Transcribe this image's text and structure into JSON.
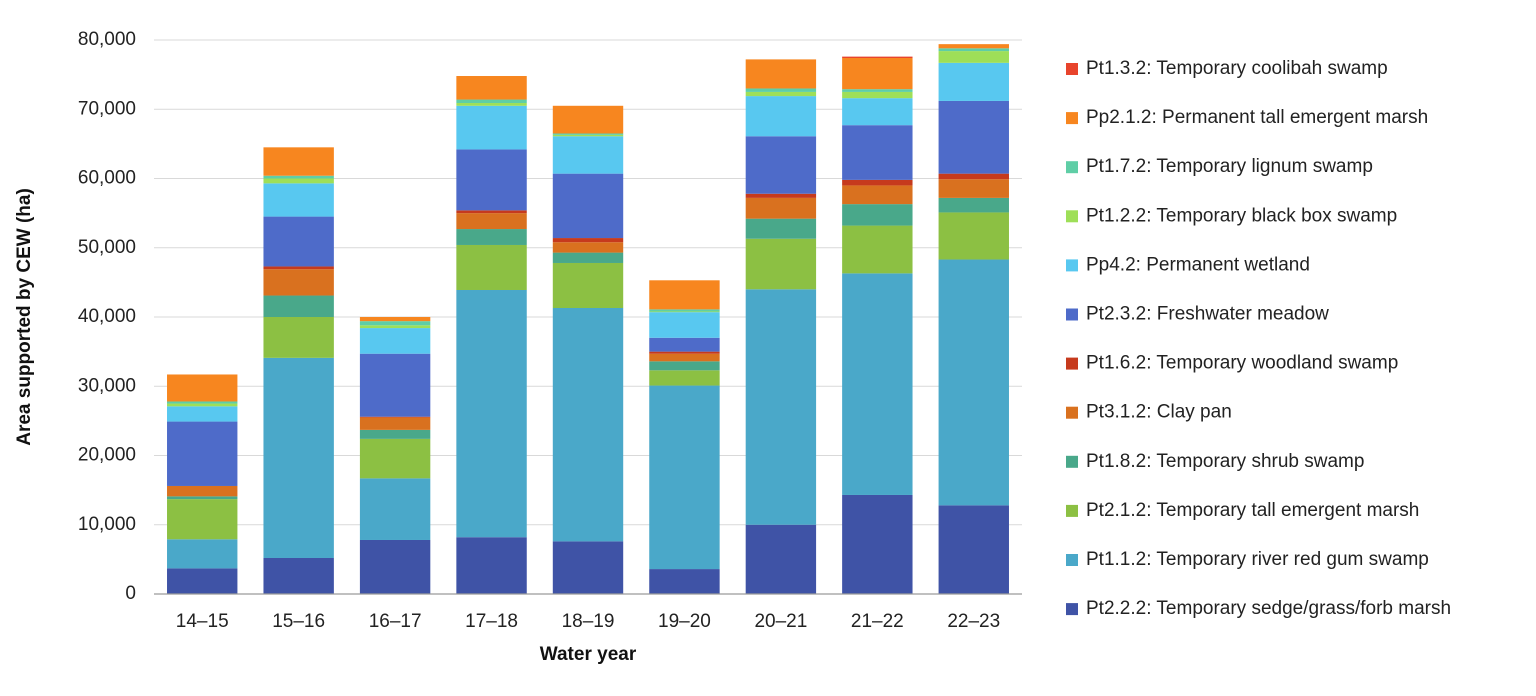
{
  "chart_data": {
    "type": "bar",
    "stacked": true,
    "title": "",
    "xlabel": "Water year",
    "ylabel": "Area supported by CEW (ha)",
    "ylim": [
      0,
      80000
    ],
    "yticks": [
      "0",
      "10,000",
      "20,000",
      "30,000",
      "40,000",
      "50,000",
      "60,000",
      "70,000",
      "80,000"
    ],
    "ytick_values": [
      0,
      10000,
      20000,
      30000,
      40000,
      50000,
      60000,
      70000,
      80000
    ],
    "grid": true,
    "legend_position": "right",
    "categories": [
      "14–15",
      "15–16",
      "16–17",
      "17–18",
      "18–19",
      "19–20",
      "20–21",
      "21–22",
      "22–23"
    ],
    "series": [
      {
        "name": "Pt2.2.2: Temporary sedge/grass/forb marsh",
        "color": "#3f53a6",
        "values": [
          3700,
          5200,
          7800,
          8200,
          7600,
          3600,
          10000,
          14300,
          12800
        ]
      },
      {
        "name": "Pt1.1.2: Temporary river red gum swamp",
        "color": "#4aa8c9",
        "values": [
          4200,
          28900,
          8900,
          35700,
          33700,
          26500,
          34000,
          32000,
          35500
        ]
      },
      {
        "name": "Pt2.1.2: Temporary tall emergent marsh",
        "color": "#8cc043",
        "values": [
          5800,
          5900,
          5700,
          6500,
          6500,
          2200,
          7300,
          6900,
          6800
        ]
      },
      {
        "name": "Pt1.8.2: Temporary shrub swamp",
        "color": "#49a88a",
        "values": [
          400,
          3100,
          1300,
          2300,
          1500,
          1300,
          2900,
          3100,
          2100
        ]
      },
      {
        "name": "Pt3.1.2: Clay pan",
        "color": "#d9711f",
        "values": [
          1500,
          3800,
          1800,
          2300,
          1500,
          1100,
          3000,
          2700,
          2700
        ]
      },
      {
        "name": "Pt1.6.2: Temporary woodland swamp",
        "color": "#c63a1d",
        "values": [
          0,
          400,
          100,
          400,
          600,
          300,
          600,
          800,
          800
        ]
      },
      {
        "name": "Pt2.3.2: Freshwater meadow",
        "color": "#4e6bc9",
        "values": [
          9300,
          7200,
          9100,
          8800,
          9300,
          2000,
          8300,
          7900,
          10500
        ]
      },
      {
        "name": "Pp4.2: Permanent wetland",
        "color": "#58c8f0",
        "values": [
          2200,
          4800,
          3700,
          6300,
          5400,
          3700,
          5800,
          3900,
          5500
        ]
      },
      {
        "name": "Pt1.2.2: Temporary black box swamp",
        "color": "#9edf58",
        "values": [
          400,
          700,
          400,
          400,
          200,
          100,
          600,
          900,
          1700
        ]
      },
      {
        "name": "Pt1.7.2: Temporary lignum swamp",
        "color": "#5fcea6",
        "values": [
          300,
          400,
          600,
          500,
          200,
          300,
          500,
          400,
          400
        ]
      },
      {
        "name": "Pp2.1.2: Permanent tall emergent marsh",
        "color": "#f7861f",
        "values": [
          3900,
          4100,
          600,
          3400,
          4000,
          4200,
          4200,
          4500,
          600
        ]
      },
      {
        "name": "Pt1.3.2: Temporary coolibah swamp",
        "color": "#e8442c",
        "values": [
          0,
          0,
          0,
          0,
          0,
          0,
          0,
          200,
          0
        ]
      }
    ]
  }
}
